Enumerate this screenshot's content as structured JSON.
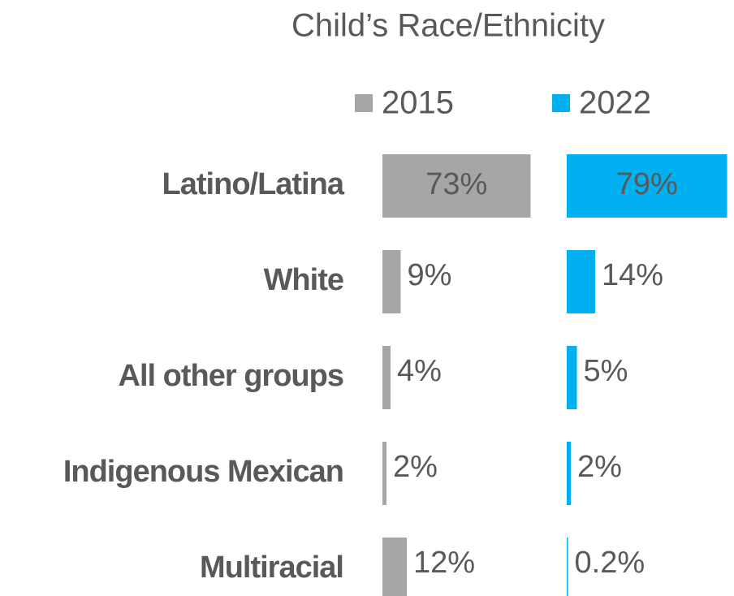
{
  "chart_data": {
    "type": "bar",
    "title": "Child’s Race/Ethnicity",
    "categories": [
      "Latino/Latina",
      "White",
      "All other groups",
      "Indigenous Mexican",
      "Multiracial"
    ],
    "series": [
      {
        "name": "2015",
        "color": "#a6a6a6",
        "values": [
          73,
          9,
          4,
          2,
          12
        ],
        "value_labels": [
          "73%",
          "9%",
          "4%",
          "2%",
          "12%"
        ]
      },
      {
        "name": "2022",
        "color": "#00b0f0",
        "values": [
          79,
          14,
          5,
          2,
          0.2
        ],
        "value_labels": [
          "79%",
          "14%",
          "5%",
          "2%",
          "0.2%"
        ]
      }
    ]
  }
}
